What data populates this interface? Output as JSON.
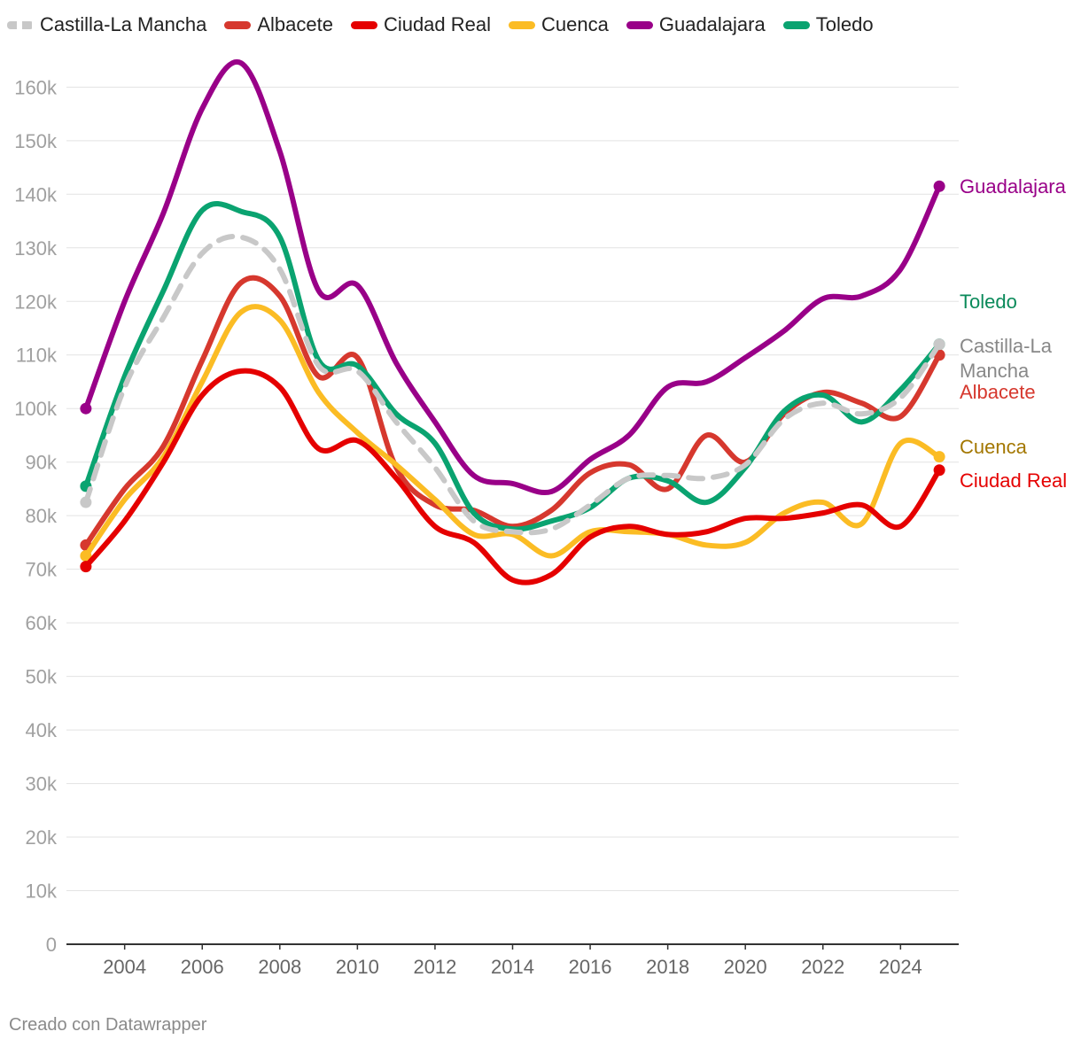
{
  "footer": {
    "credit": "Creado con Datawrapper"
  },
  "chart_data": {
    "type": "line",
    "title": "",
    "xlabel": "",
    "ylabel": "",
    "x": [
      2003,
      2004,
      2005,
      2006,
      2007,
      2008,
      2009,
      2010,
      2011,
      2012,
      2013,
      2014,
      2015,
      2016,
      2017,
      2018,
      2019,
      2020,
      2021,
      2022,
      2023,
      2024,
      2025
    ],
    "xlim": [
      2002.5,
      2025.5
    ],
    "ylim": [
      0,
      167000
    ],
    "x_ticks": [
      2004,
      2006,
      2008,
      2010,
      2012,
      2014,
      2016,
      2018,
      2020,
      2022,
      2024
    ],
    "x_tick_labels": [
      "2004",
      "2006",
      "2008",
      "2010",
      "2012",
      "2014",
      "2016",
      "2018",
      "2020",
      "2022",
      "2024"
    ],
    "y_ticks": [
      0,
      10000,
      20000,
      30000,
      40000,
      50000,
      60000,
      70000,
      80000,
      90000,
      100000,
      110000,
      120000,
      130000,
      140000,
      150000,
      160000
    ],
    "y_tick_labels": [
      "0",
      "10k",
      "20k",
      "30k",
      "40k",
      "50k",
      "60k",
      "70k",
      "80k",
      "90k",
      "100k",
      "110k",
      "120k",
      "130k",
      "140k",
      "150k",
      "160k"
    ],
    "grid": "horizontal",
    "legend_position": "top",
    "series": [
      {
        "name": "Castilla-La Mancha",
        "color": "#c8c8c8",
        "dashed": true,
        "label": [
          "Castilla-La",
          "Mancha"
        ],
        "label_color": "#888888",
        "values": [
          82500,
          104000,
          117000,
          129000,
          132000,
          126000,
          108000,
          107000,
          97500,
          89000,
          79000,
          77000,
          77500,
          82000,
          87000,
          87500,
          87000,
          89500,
          98000,
          101000,
          99000,
          102000,
          112000
        ]
      },
      {
        "name": "Albacete",
        "color": "#d6382e",
        "dashed": false,
        "label": [
          "Albacete"
        ],
        "label_color": "#d6382e",
        "values": [
          74500,
          85000,
          93000,
          109000,
          123500,
          121000,
          106000,
          109500,
          89000,
          82000,
          81000,
          78000,
          81000,
          88000,
          89500,
          85000,
          95000,
          90000,
          99000,
          103000,
          101000,
          98500,
          110000
        ]
      },
      {
        "name": "Ciudad Real",
        "color": "#e50000",
        "dashed": false,
        "label": [
          "Ciudad Real"
        ],
        "label_color": "#e50000",
        "values": [
          70500,
          79000,
          90000,
          102500,
          107000,
          104000,
          92500,
          94000,
          87000,
          78000,
          75000,
          68000,
          69000,
          76000,
          78000,
          76500,
          77000,
          79500,
          79500,
          80500,
          82000,
          78000,
          88500
        ]
      },
      {
        "name": "Cuenca",
        "color": "#fbbc24",
        "dashed": false,
        "label": [
          "Cuenca"
        ],
        "label_color": "#a37700",
        "values": [
          72500,
          83000,
          91000,
          105000,
          118000,
          116500,
          103000,
          95500,
          89500,
          83000,
          76500,
          76500,
          72500,
          77000,
          77000,
          76500,
          74500,
          75000,
          80500,
          82500,
          78500,
          93500,
          91000
        ]
      },
      {
        "name": "Guadalajara",
        "color": "#990088",
        "dashed": false,
        "label": [
          "Guadalajara"
        ],
        "label_color": "#990088",
        "values": [
          100000,
          120000,
          136500,
          156000,
          164500,
          148000,
          122000,
          123000,
          108500,
          97500,
          87500,
          86000,
          84500,
          90500,
          95000,
          104000,
          105000,
          109500,
          114500,
          120500,
          121000,
          126000,
          141500
        ]
      },
      {
        "name": "Toledo",
        "color": "#0aa370",
        "dashed": false,
        "label": [
          "Toledo"
        ],
        "label_color": "#0a8a5a",
        "values": [
          85500,
          106000,
          122000,
          137000,
          136800,
          132000,
          109000,
          108000,
          99000,
          93500,
          80500,
          77500,
          79000,
          81500,
          87000,
          86500,
          82500,
          89000,
          99500,
          102500,
          97500,
          103500,
          112000
        ]
      }
    ]
  }
}
